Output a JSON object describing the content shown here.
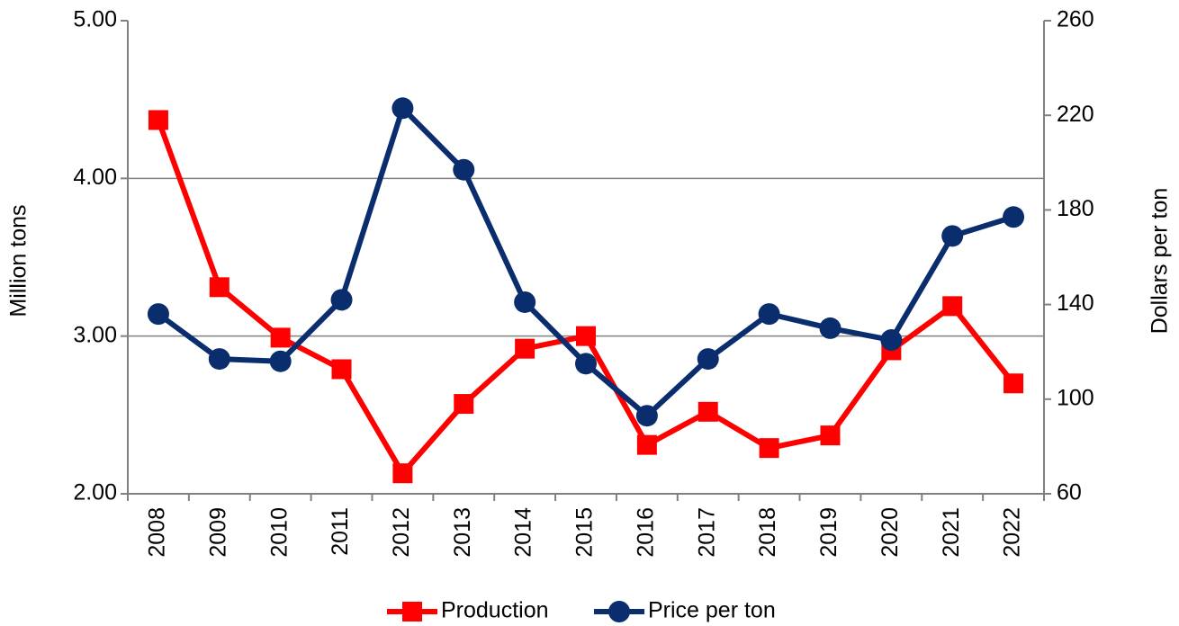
{
  "chart_data": {
    "type": "line",
    "categories": [
      "2008",
      "2009",
      "2010",
      "2011",
      "2012",
      "2013",
      "2014",
      "2015",
      "2016",
      "2017",
      "2018",
      "2019",
      "2020",
      "2021",
      "2022"
    ],
    "series": [
      {
        "name": "Production",
        "color": "#ff0000",
        "marker": "square",
        "values": [
          4.37,
          3.31,
          2.99,
          2.79,
          2.13,
          2.57,
          2.92,
          3.0,
          2.31,
          2.52,
          2.29,
          2.37,
          2.91,
          3.19,
          2.7
        ]
      },
      {
        "name": "Price per ton",
        "color": "#0a2d6e",
        "marker": "circle",
        "axis": "y2",
        "values": [
          136,
          117,
          116,
          142,
          223,
          197,
          141,
          115,
          93,
          117,
          136,
          130,
          125,
          169,
          177
        ]
      }
    ],
    "ylabel": "Million tons",
    "y2label": "Dollars per ton",
    "ylim": [
      2,
      5
    ],
    "yticks": [
      {
        "value": 2,
        "label": "2.00"
      },
      {
        "value": 3,
        "label": "3.00"
      },
      {
        "value": 4,
        "label": "4.00"
      },
      {
        "value": 5,
        "label": "5.00"
      }
    ],
    "y2lim": [
      60,
      260
    ],
    "y2ticks": [
      60,
      100,
      140,
      180,
      220,
      260
    ],
    "grid": true,
    "legend": "bottom"
  }
}
